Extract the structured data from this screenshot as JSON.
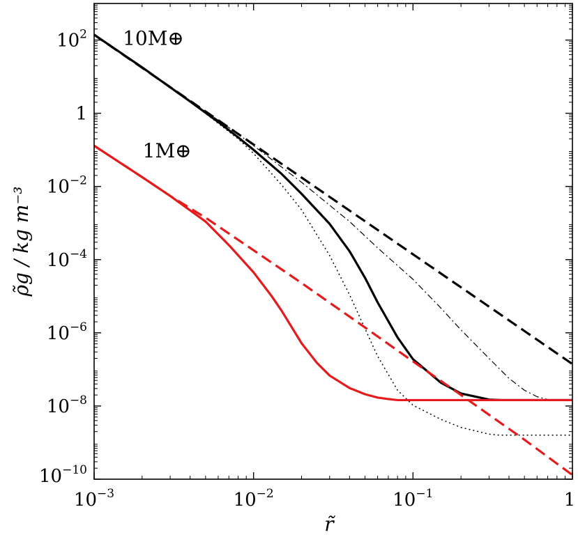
{
  "chart_data": {
    "type": "line",
    "xscale": "log",
    "yscale": "log",
    "xlim": [
      0.001,
      1
    ],
    "ylim": [
      1e-10,
      1000
    ],
    "xlabel": "r̃",
    "ylabel": "ρ̃g / kg m⁻³",
    "xticks": [
      {
        "value": 0.001,
        "base": "10",
        "exp": "−3"
      },
      {
        "value": 0.01,
        "base": "10",
        "exp": "−2"
      },
      {
        "value": 0.1,
        "base": "10",
        "exp": "−1"
      },
      {
        "value": 1,
        "base": "1",
        "exp": ""
      }
    ],
    "yticks": [
      {
        "value": 100,
        "base": "10",
        "exp": "2"
      },
      {
        "value": 1,
        "base": "1",
        "exp": ""
      },
      {
        "value": 0.01,
        "base": "10",
        "exp": "−2"
      },
      {
        "value": 0.0001,
        "base": "10",
        "exp": "−4"
      },
      {
        "value": 1e-06,
        "base": "10",
        "exp": "−6"
      },
      {
        "value": 1e-08,
        "base": "10",
        "exp": "−8"
      },
      {
        "value": 1e-10,
        "base": "10",
        "exp": "−10"
      }
    ],
    "annotations": [
      {
        "text": "10M⊕",
        "x": 0.0012,
        "y": 120
      },
      {
        "text": "1M⊕",
        "x": 0.0016,
        "y": 0.1
      }
    ],
    "series": [
      {
        "color": "#000000",
        "style": "dashed",
        "width": 3.2,
        "x": [
          0.001,
          1
        ],
        "y": [
          140,
          1.4e-07
        ]
      },
      {
        "color": "#000000",
        "style": "solid",
        "width": 3.2,
        "x": [
          0.001,
          0.002,
          0.004,
          0.006,
          0.008,
          0.01,
          0.015,
          0.02,
          0.03,
          0.04,
          0.05,
          0.06,
          0.08,
          0.1,
          0.15,
          0.2,
          0.3,
          0.36,
          0.5,
          1
        ],
        "y": [
          140,
          18,
          2.1,
          0.58,
          0.22,
          0.1,
          0.022,
          0.0063,
          0.00095,
          0.00017,
          3.2e-05,
          6.8e-06,
          7.5e-07,
          1.9e-07,
          4.3e-08,
          2.2e-08,
          1.5e-08,
          1.45e-08,
          1.45e-08,
          1.45e-08
        ]
      },
      {
        "color": "#000000",
        "style": "dashdot",
        "width": 1.2,
        "x": [
          0.001,
          0.004,
          0.008,
          0.01,
          0.02,
          0.04,
          0.06,
          0.1,
          0.15,
          0.2,
          0.3,
          0.4,
          0.5,
          0.6,
          0.7,
          1
        ],
        "y": [
          140,
          2.2,
          0.27,
          0.13,
          0.013,
          0.0011,
          0.00021,
          2.9e-05,
          4.7e-06,
          1.2e-06,
          2e-07,
          5.7e-08,
          2.7e-08,
          1.8e-08,
          1.5e-08,
          1.45e-08
        ]
      },
      {
        "color": "#000000",
        "style": "dotted",
        "width": 1.5,
        "x": [
          0.001,
          0.004,
          0.008,
          0.01,
          0.015,
          0.02,
          0.03,
          0.04,
          0.05,
          0.06,
          0.08,
          0.1,
          0.15,
          0.2,
          0.3,
          0.35,
          1
        ],
        "y": [
          140,
          2.1,
          0.2,
          0.08,
          0.011,
          0.0023,
          0.00013,
          1.1e-05,
          1.3e-06,
          2.3e-07,
          2.7e-08,
          1.05e-08,
          4.3e-09,
          2.6e-09,
          1.7e-09,
          1.6e-09,
          1.6e-09
        ]
      },
      {
        "color": "#e41a1c",
        "style": "dashed",
        "width": 3.2,
        "x": [
          0.001,
          0.002,
          0.003,
          0.005,
          0.01,
          0.02,
          0.05,
          0.1,
          0.2,
          0.5,
          1
        ],
        "y": [
          0.13,
          0.018,
          0.0055,
          0.0014,
          0.00018,
          2.3e-05,
          1.4e-06,
          1.65e-07,
          2e-08,
          1.2e-09,
          1.3e-10
        ]
      },
      {
        "color": "#e41a1c",
        "style": "solid",
        "width": 3.2,
        "x": [
          0.001,
          0.002,
          0.003,
          0.005,
          0.007,
          0.01,
          0.013,
          0.015,
          0.02,
          0.025,
          0.03,
          0.04,
          0.05,
          0.06,
          0.07,
          0.08,
          0.1,
          0.5,
          1
        ],
        "y": [
          0.13,
          0.018,
          0.0055,
          0.0011,
          0.00025,
          4.5e-05,
          1e-05,
          4e-06,
          5.2e-07,
          1.5e-07,
          6.8e-08,
          3.1e-08,
          2.1e-08,
          1.7e-08,
          1.55e-08,
          1.45e-08,
          1.45e-08,
          1.45e-08,
          1.45e-08
        ]
      }
    ]
  }
}
